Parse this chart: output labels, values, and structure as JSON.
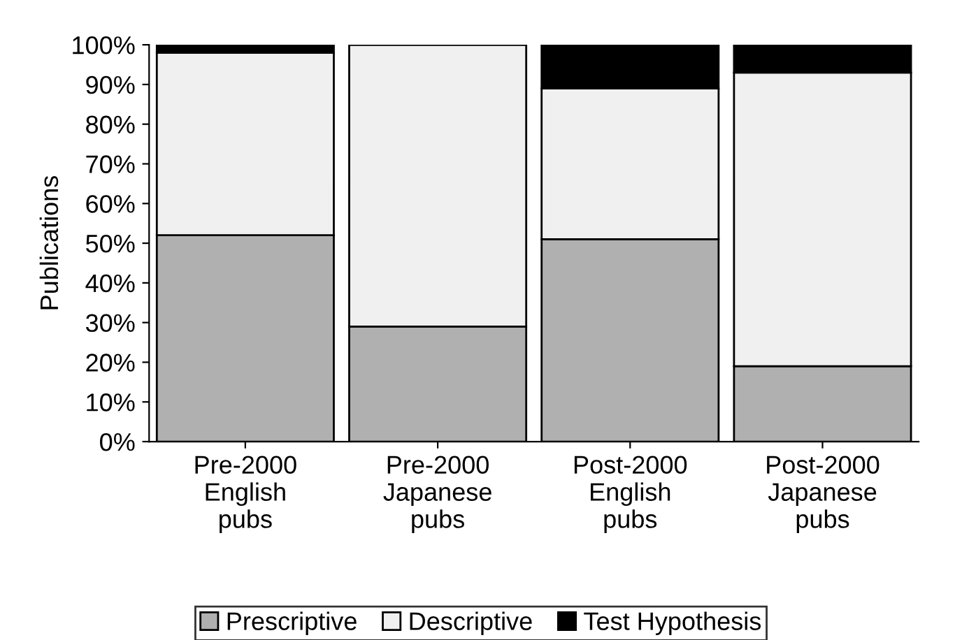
{
  "chart_data": {
    "type": "bar",
    "stacked": true,
    "ylabel": "Publications",
    "categories": [
      "Pre-2000\nEnglish\npubs",
      "Pre-2000\nJapanese\npubs",
      "Post-2000\nEnglish\npubs",
      "Post-2000\nJapanese\npubs"
    ],
    "series": [
      {
        "name": "Prescriptive",
        "color": "#b0b0b0",
        "values": [
          52,
          29,
          51,
          19
        ]
      },
      {
        "name": "Descriptive",
        "color": "#f0f0f0",
        "values": [
          46,
          71,
          38,
          74
        ]
      },
      {
        "name": "Test Hypothesis",
        "color": "#000000",
        "values": [
          2,
          0,
          11,
          7
        ]
      }
    ],
    "ylim": [
      0,
      100
    ],
    "yticks": [
      {
        "value": 0,
        "label": "0%"
      },
      {
        "value": 10,
        "label": "10%"
      },
      {
        "value": 20,
        "label": "20%"
      },
      {
        "value": 30,
        "label": "30%"
      },
      {
        "value": 40,
        "label": "40%"
      },
      {
        "value": 50,
        "label": "50%"
      },
      {
        "value": 60,
        "label": "60%"
      },
      {
        "value": 70,
        "label": "70%"
      },
      {
        "value": 80,
        "label": "80%"
      },
      {
        "value": 90,
        "label": "90%"
      },
      {
        "value": 100,
        "label": "100%"
      }
    ],
    "legend": "bottom"
  }
}
